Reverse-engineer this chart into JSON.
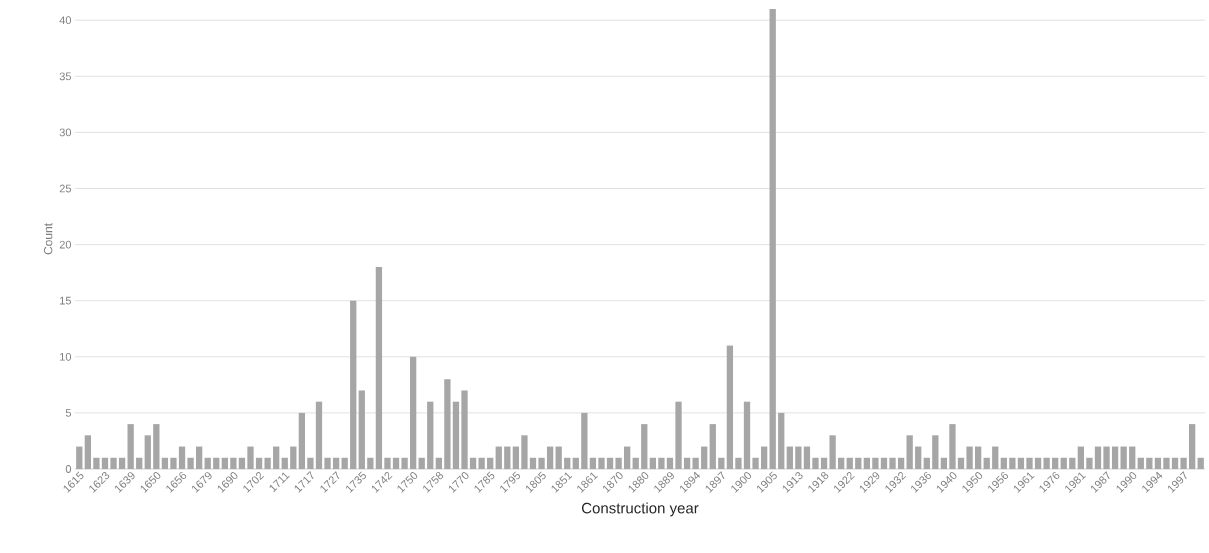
{
  "chart_data": {
    "type": "bar",
    "xlabel": "Construction year",
    "ylabel": "Count",
    "categories": [
      "1615",
      null,
      null,
      "1623",
      null,
      null,
      "1639",
      null,
      null,
      "1650",
      null,
      null,
      "1656",
      null,
      null,
      "1679",
      null,
      null,
      "1690",
      null,
      null,
      "1702",
      null,
      null,
      "1711",
      null,
      null,
      "1717",
      null,
      null,
      "1727",
      null,
      null,
      "1735",
      null,
      null,
      "1742",
      null,
      null,
      "1750",
      null,
      null,
      "1758",
      null,
      null,
      "1770",
      null,
      null,
      "1785",
      null,
      null,
      "1795",
      null,
      null,
      "1805",
      null,
      null,
      "1851",
      null,
      null,
      "1861",
      null,
      null,
      "1870",
      null,
      null,
      "1880",
      null,
      null,
      "1889",
      null,
      null,
      "1894",
      null,
      null,
      "1897",
      null,
      null,
      "1900",
      null,
      null,
      "1905",
      null,
      null,
      "1913",
      null,
      null,
      "1918",
      null,
      null,
      "1922",
      null,
      null,
      "1929",
      null,
      null,
      "1932",
      null,
      null,
      "1936",
      null,
      null,
      "1940",
      null,
      null,
      "1950",
      null,
      null,
      "1956",
      null,
      null,
      "1961",
      null,
      null,
      "1976",
      null,
      null,
      "1981",
      null,
      null,
      "1987",
      null,
      null,
      "1990",
      null,
      null,
      "1994",
      null,
      null,
      "1997",
      null,
      null
    ],
    "values": [
      2,
      3,
      1,
      1,
      1,
      1,
      4,
      1,
      3,
      4,
      1,
      1,
      2,
      1,
      2,
      1,
      1,
      1,
      1,
      1,
      2,
      1,
      1,
      2,
      1,
      2,
      5,
      1,
      6,
      1,
      1,
      1,
      15,
      7,
      1,
      18,
      1,
      1,
      1,
      10,
      1,
      6,
      1,
      8,
      6,
      7,
      1,
      1,
      1,
      2,
      2,
      2,
      3,
      1,
      1,
      2,
      2,
      1,
      1,
      5,
      1,
      1,
      1,
      1,
      2,
      1,
      4,
      1,
      1,
      1,
      6,
      1,
      1,
      2,
      4,
      1,
      11,
      1,
      6,
      1,
      2,
      41,
      5,
      2,
      2,
      2,
      1,
      1,
      3,
      1,
      1,
      1,
      1,
      1,
      1,
      1,
      1,
      3,
      2,
      1,
      3,
      1,
      4,
      1,
      2,
      2,
      1,
      2,
      1,
      1,
      1,
      1,
      1,
      1,
      1,
      1,
      1,
      2,
      1,
      2,
      2,
      2,
      2,
      2,
      1,
      1,
      1,
      1,
      1,
      1,
      4,
      1
    ],
    "color": "#a6a6a6",
    "ylim": [
      0,
      41
    ],
    "yticks": [
      0,
      5,
      10,
      15,
      20,
      25,
      30,
      35,
      40
    ],
    "grid": "y"
  }
}
